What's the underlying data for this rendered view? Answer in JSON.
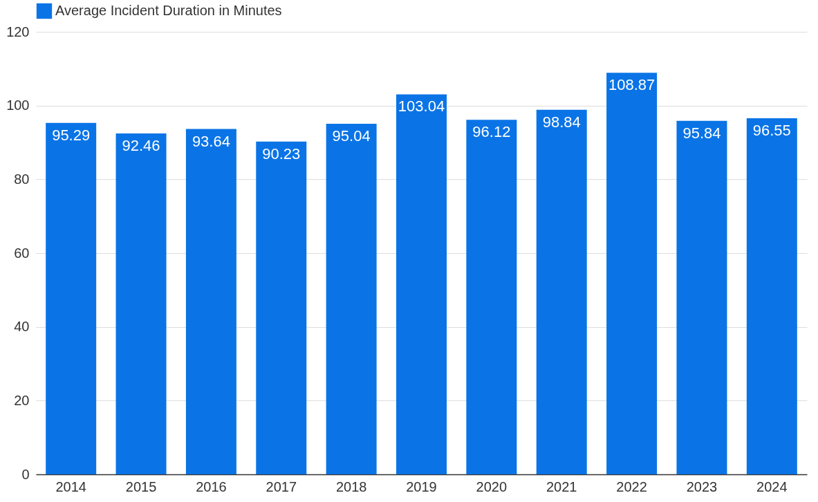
{
  "chart_data": {
    "type": "bar",
    "categories": [
      "2014",
      "2015",
      "2016",
      "2017",
      "2018",
      "2019",
      "2020",
      "2021",
      "2022",
      "2023",
      "2024"
    ],
    "series": [
      {
        "name": "Average Incident Duration in Minutes",
        "color": "#0a74e6",
        "values": [
          95.29,
          92.46,
          93.64,
          90.23,
          95.04,
          103.04,
          96.12,
          98.84,
          108.87,
          95.84,
          96.55
        ]
      }
    ],
    "ylim": [
      0,
      120
    ],
    "yticks": [
      0,
      20,
      40,
      60,
      80,
      100,
      120
    ],
    "grid": "y",
    "legend": "top left",
    "data_labels": true
  }
}
